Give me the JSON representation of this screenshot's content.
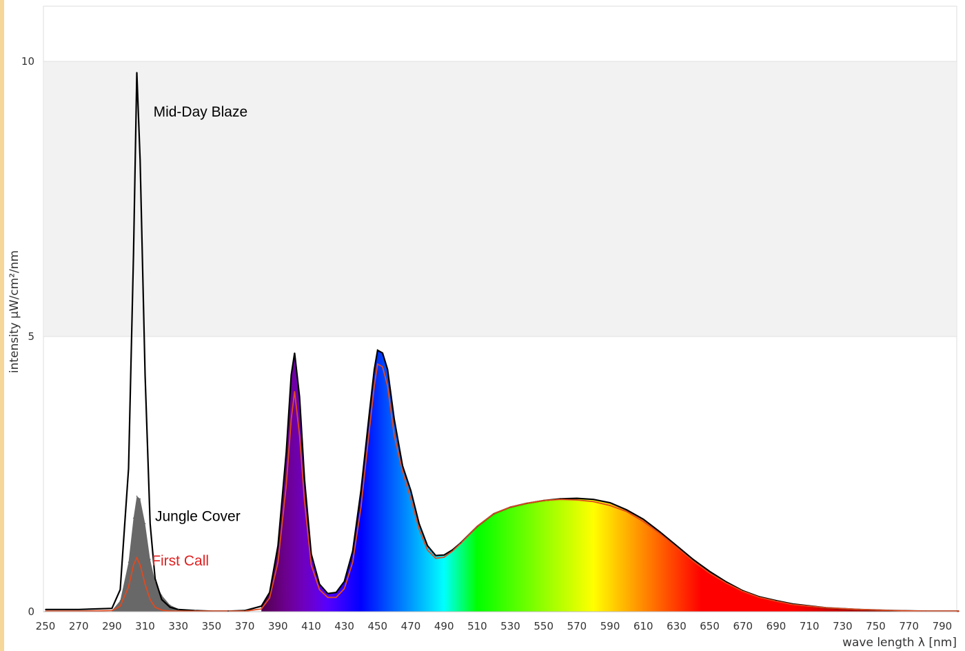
{
  "chart_data": {
    "type": "area",
    "xlabel": "wave length λ [nm]",
    "ylabel": "intensity µW/cm²/nm",
    "xlim": [
      250,
      800
    ],
    "ylim": [
      0,
      11
    ],
    "x_ticks": [
      250,
      270,
      290,
      310,
      330,
      350,
      370,
      390,
      410,
      430,
      450,
      470,
      490,
      510,
      530,
      550,
      570,
      590,
      610,
      630,
      650,
      670,
      690,
      710,
      730,
      750,
      770,
      790
    ],
    "y_ticks": [
      0,
      5,
      10
    ],
    "background_bands": [
      {
        "from": 5,
        "to": 10,
        "color": "#f2f2f2"
      }
    ],
    "annotations": [
      {
        "text": "Mid-Day Blaze",
        "x": 315,
        "y": 9.0,
        "color": "#000000"
      },
      {
        "text": "Jungle Cover",
        "x": 316,
        "y": 1.65,
        "color": "#000000"
      },
      {
        "text": "First Call",
        "x": 314,
        "y": 0.84,
        "color": "#e02020"
      }
    ],
    "series": [
      {
        "name": "Mid-Day Blaze",
        "style": "outline",
        "color": "#000000",
        "x": [
          250,
          270,
          290,
          295,
          300,
          303,
          305,
          307,
          310,
          313,
          316,
          320,
          325,
          330,
          340,
          350,
          360,
          370,
          380,
          385,
          390,
          395,
          398,
          400,
          403,
          406,
          410,
          415,
          420,
          425,
          430,
          435,
          440,
          445,
          448,
          450,
          453,
          456,
          460,
          465,
          470,
          475,
          480,
          485,
          490,
          495,
          500,
          510,
          520,
          530,
          540,
          550,
          560,
          570,
          580,
          590,
          600,
          610,
          620,
          630,
          640,
          650,
          660,
          670,
          680,
          690,
          700,
          720,
          740,
          760,
          780,
          800
        ],
        "y": [
          0.04,
          0.04,
          0.06,
          0.4,
          2.6,
          6.5,
          9.8,
          8.2,
          4.3,
          1.6,
          0.6,
          0.22,
          0.08,
          0.04,
          0.02,
          0.01,
          0.01,
          0.02,
          0.1,
          0.35,
          1.2,
          2.9,
          4.3,
          4.7,
          3.9,
          2.4,
          1.05,
          0.5,
          0.33,
          0.35,
          0.55,
          1.1,
          2.2,
          3.6,
          4.4,
          4.75,
          4.7,
          4.4,
          3.5,
          2.65,
          2.2,
          1.6,
          1.2,
          1.02,
          1.03,
          1.12,
          1.25,
          1.55,
          1.78,
          1.9,
          1.97,
          2.02,
          2.05,
          2.06,
          2.04,
          1.98,
          1.85,
          1.68,
          1.45,
          1.2,
          0.95,
          0.73,
          0.54,
          0.38,
          0.27,
          0.2,
          0.14,
          0.07,
          0.04,
          0.02,
          0.01,
          0.01
        ]
      },
      {
        "name": "Jungle Cover",
        "style": "filled-gray",
        "color": "#606060",
        "x": [
          290,
          295,
          300,
          303,
          305,
          307,
          310,
          313,
          316,
          320,
          325,
          330,
          340,
          350
        ],
        "y": [
          0.02,
          0.2,
          0.9,
          1.7,
          2.1,
          2.05,
          1.6,
          0.95,
          0.55,
          0.3,
          0.12,
          0.05,
          0.02,
          0.01
        ]
      },
      {
        "name": "First Call",
        "style": "outline",
        "color": "#e04a20",
        "x": [
          250,
          270,
          290,
          295,
          300,
          303,
          305,
          307,
          310,
          313,
          316,
          320,
          325,
          330,
          340,
          350,
          370,
          380,
          385,
          390,
          395,
          398,
          400,
          403,
          406,
          410,
          415,
          420,
          425,
          430,
          435,
          440,
          445,
          448,
          450,
          453,
          456,
          460,
          465,
          470,
          475,
          480,
          485,
          490,
          495,
          500,
          510,
          520,
          530,
          540,
          550,
          560,
          570,
          580,
          590,
          600,
          610,
          620,
          630,
          640,
          650,
          660,
          670,
          680,
          690,
          700,
          720,
          740,
          760,
          780,
          800
        ],
        "y": [
          0.01,
          0.01,
          0.02,
          0.1,
          0.45,
          0.85,
          0.98,
          0.85,
          0.5,
          0.22,
          0.08,
          0.03,
          0.01,
          0.01,
          0.01,
          0.01,
          0.01,
          0.05,
          0.25,
          0.9,
          2.3,
          3.5,
          4.0,
          3.2,
          2.0,
          0.85,
          0.4,
          0.26,
          0.26,
          0.42,
          0.9,
          1.9,
          3.3,
          4.1,
          4.5,
          4.45,
          4.1,
          3.2,
          2.55,
          2.05,
          1.5,
          1.12,
          0.97,
          0.99,
          1.1,
          1.24,
          1.55,
          1.78,
          1.9,
          1.97,
          2.02,
          2.04,
          2.03,
          2.0,
          1.93,
          1.82,
          1.64,
          1.42,
          1.17,
          0.92,
          0.7,
          0.52,
          0.37,
          0.26,
          0.19,
          0.13,
          0.07,
          0.04,
          0.02,
          0.01,
          0.01
        ]
      }
    ]
  }
}
